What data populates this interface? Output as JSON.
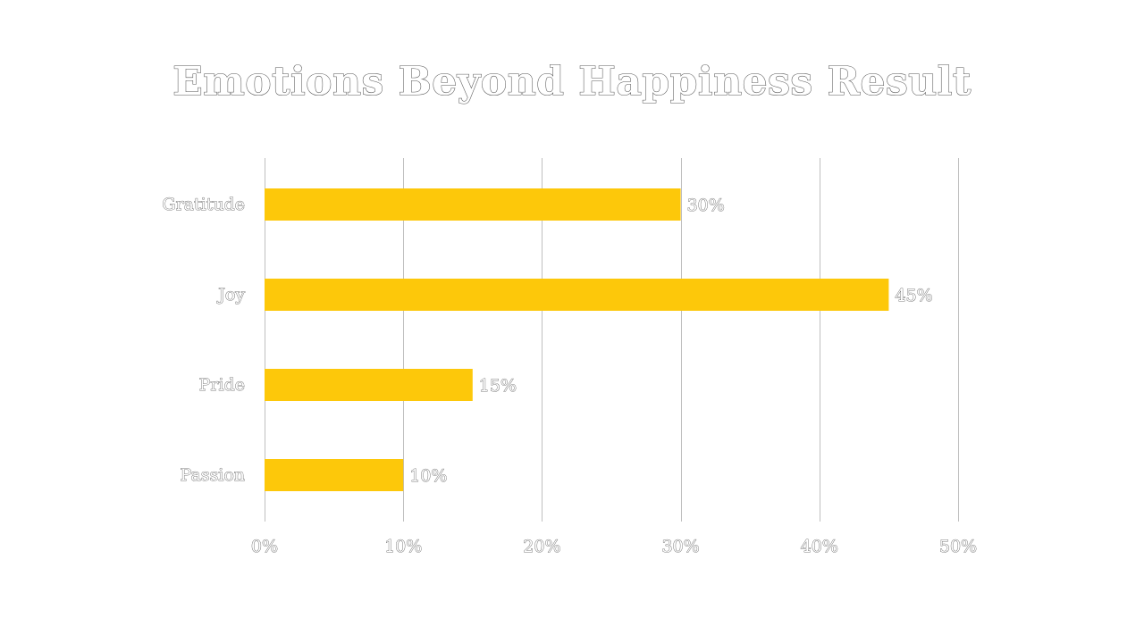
{
  "chart_data": {
    "type": "bar",
    "orientation": "horizontal",
    "title": "Emotions Beyond Happiness Result",
    "categories": [
      "Gratitude",
      "Joy",
      "Pride",
      "Passion"
    ],
    "values": [
      30,
      45,
      15,
      10
    ],
    "data_labels": [
      "30%",
      "45%",
      "15%",
      "10%"
    ],
    "xlim": [
      0,
      50
    ],
    "x_ticks": [
      0,
      10,
      20,
      30,
      40,
      50
    ],
    "x_tick_labels": [
      "0%",
      "10%",
      "20%",
      "30%",
      "40%",
      "50%"
    ],
    "xlabel": "",
    "ylabel": "",
    "grid": true,
    "legend": "none",
    "colors": {
      "bar": "#fdc80a",
      "grid": "#bfbfbf",
      "text_outline": "#555555"
    }
  }
}
